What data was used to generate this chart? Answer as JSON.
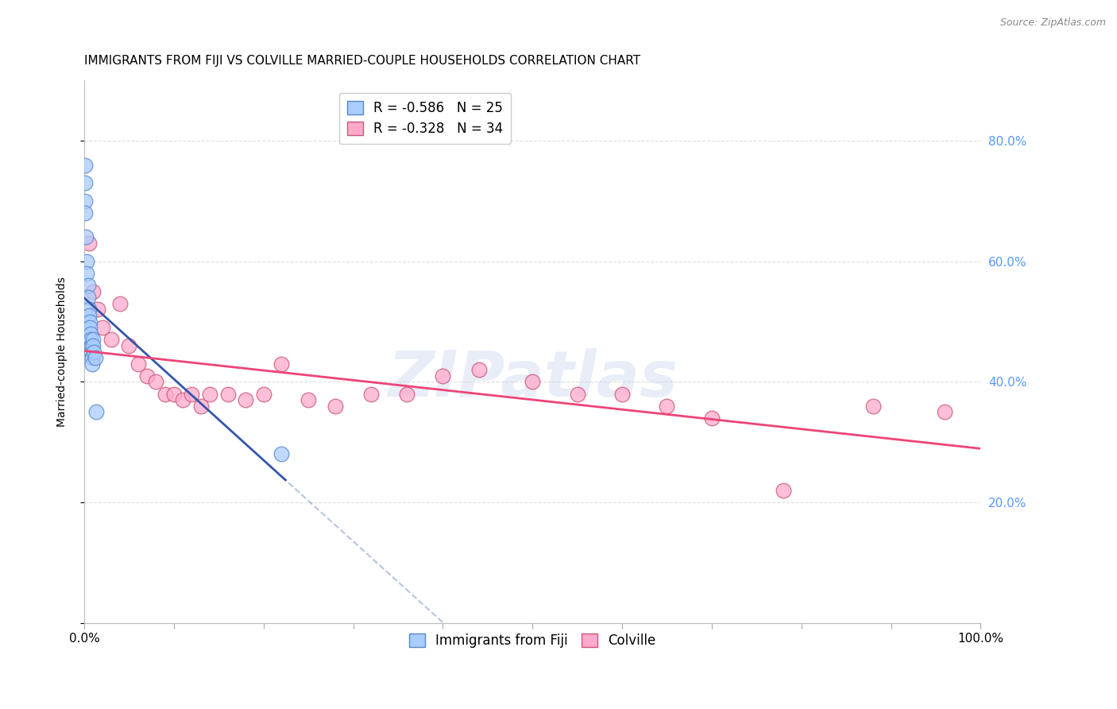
{
  "title": "IMMIGRANTS FROM FIJI VS COLVILLE MARRIED-COUPLE HOUSEHOLDS CORRELATION CHART",
  "source": "Source: ZipAtlas.com",
  "ylabel": "Married-couple Households",
  "xlabel": "",
  "xlim": [
    0.0,
    1.0
  ],
  "ylim": [
    0.0,
    0.9
  ],
  "xtick_positions": [
    0.0,
    0.1,
    0.2,
    0.3,
    0.4,
    0.5,
    0.6,
    0.7,
    0.8,
    0.9,
    1.0
  ],
  "xticklabels_shown": {
    "0.0": "0.0%",
    "1.0": "100.0%"
  },
  "yticks": [
    0.0,
    0.2,
    0.4,
    0.6,
    0.8
  ],
  "yticklabels": [
    "",
    "20.0%",
    "40.0%",
    "60.0%",
    "80.0%"
  ],
  "right_ytick_color": "#5599ff",
  "fiji_color": "#aaccff",
  "fiji_edge_color": "#5588cc",
  "colville_color": "#ffaacc",
  "colville_edge_color": "#cc5577",
  "fiji_line_color": "#3355aa",
  "colville_line_color": "#ee4477",
  "fiji_R": -0.586,
  "fiji_N": 25,
  "colville_R": -0.328,
  "colville_N": 34,
  "fiji_x": [
    0.001,
    0.001,
    0.001,
    0.001,
    0.002,
    0.003,
    0.003,
    0.004,
    0.004,
    0.005,
    0.005,
    0.006,
    0.006,
    0.007,
    0.007,
    0.008,
    0.008,
    0.009,
    0.009,
    0.01,
    0.01,
    0.011,
    0.012,
    0.013,
    0.22
  ],
  "fiji_y": [
    0.76,
    0.73,
    0.7,
    0.68,
    0.64,
    0.6,
    0.58,
    0.56,
    0.54,
    0.52,
    0.51,
    0.5,
    0.49,
    0.48,
    0.47,
    0.46,
    0.45,
    0.44,
    0.43,
    0.47,
    0.46,
    0.45,
    0.44,
    0.35,
    0.28
  ],
  "colville_x": [
    0.005,
    0.01,
    0.015,
    0.02,
    0.03,
    0.04,
    0.05,
    0.06,
    0.07,
    0.08,
    0.09,
    0.1,
    0.11,
    0.12,
    0.13,
    0.14,
    0.16,
    0.18,
    0.2,
    0.22,
    0.25,
    0.28,
    0.32,
    0.36,
    0.4,
    0.44,
    0.5,
    0.55,
    0.6,
    0.65,
    0.7,
    0.78,
    0.88,
    0.96
  ],
  "colville_y": [
    0.63,
    0.55,
    0.52,
    0.49,
    0.47,
    0.53,
    0.46,
    0.43,
    0.41,
    0.4,
    0.38,
    0.38,
    0.37,
    0.38,
    0.36,
    0.38,
    0.38,
    0.37,
    0.38,
    0.43,
    0.37,
    0.36,
    0.38,
    0.38,
    0.41,
    0.42,
    0.4,
    0.38,
    0.38,
    0.36,
    0.34,
    0.22,
    0.36,
    0.35
  ],
  "watermark": "ZIPatlas",
  "background_color": "#ffffff",
  "grid_color": "#dddddd",
  "title_fontsize": 11,
  "axis_label_fontsize": 10,
  "tick_fontsize": 11,
  "legend_fontsize": 12
}
